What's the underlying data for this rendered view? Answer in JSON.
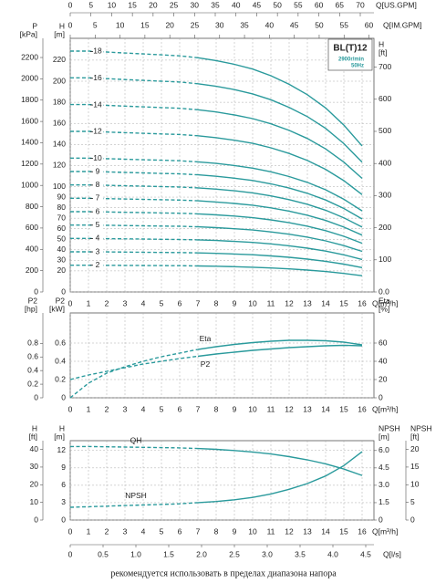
{
  "chart_data": [
    {
      "type": "line",
      "model": "BL(T)12",
      "speed": "2900r/min",
      "frequency": "50Hz",
      "x_label": "Q[m³/h]",
      "x": [
        0,
        1,
        2,
        3,
        4,
        5,
        6,
        7,
        8,
        9,
        10,
        11,
        12,
        13,
        14,
        15,
        16
      ],
      "xlim": [
        0,
        16.65
      ],
      "xticks": [
        0,
        1,
        2,
        3,
        4,
        5,
        6,
        7,
        8,
        9,
        10,
        11,
        12,
        13,
        14,
        15,
        16
      ],
      "y_label": [
        "H",
        "[m]"
      ],
      "ylim": [
        0,
        240.7
      ],
      "yticks": [
        0,
        20,
        30,
        40,
        50,
        60,
        70,
        80,
        90,
        100,
        120,
        140,
        160,
        180,
        200,
        220
      ],
      "grid": true,
      "dashed_below": 7,
      "color": "#2a9a9c",
      "extra_axes": [
        {
          "side": "left",
          "label": [
            "P",
            "[kPa]"
          ],
          "lim": [
            0,
            2380
          ],
          "ticks": [
            0,
            200,
            400,
            600,
            800,
            1000,
            1200,
            1400,
            1600,
            1800,
            2000,
            2200
          ]
        },
        {
          "side": "right",
          "label": [
            "H",
            "[ft]"
          ],
          "lim": [
            0,
            789.7
          ],
          "ticks": [
            {
              "value": 0,
              "label": "0.0"
            },
            100,
            200,
            300,
            400,
            500,
            600,
            700
          ]
        },
        {
          "side": "top",
          "label": "Q[US.GPM]",
          "lim": [
            0,
            73.3
          ],
          "ticks": [
            0,
            5,
            10,
            15,
            20,
            25,
            30,
            35,
            40,
            45,
            50,
            55,
            60,
            65,
            70
          ]
        },
        {
          "side": "top",
          "label": "Q[IM.GPM]",
          "lim": [
            0,
            61.0
          ],
          "ticks": [
            0,
            5,
            10,
            15,
            20,
            25,
            30,
            35,
            40,
            45,
            50,
            55,
            60
          ]
        }
      ],
      "series": [
        {
          "name": "18",
          "values": [
            228.6,
            228.6,
            227.7,
            226.8,
            225.9,
            225,
            224.1,
            222.3,
            219.6,
            216,
            211.5,
            205.2,
            197.1,
            187.2,
            174.6,
            158.4,
            138.6
          ]
        },
        {
          "name": "16",
          "values": [
            203.2,
            203.2,
            202.4,
            201.6,
            200.8,
            200,
            199.2,
            197.6,
            195.2,
            192,
            188,
            182.4,
            175.2,
            166.4,
            155.2,
            140.8,
            123.2
          ]
        },
        {
          "name": "14",
          "values": [
            177.8,
            177.8,
            177.1,
            176.4,
            175.7,
            175,
            174.3,
            172.9,
            170.8,
            168,
            164.5,
            159.6,
            153.3,
            145.6,
            135.8,
            123.2,
            107.8
          ]
        },
        {
          "name": "12",
          "values": [
            152.4,
            152.4,
            151.8,
            151.2,
            150.6,
            150,
            149.4,
            148.2,
            146.4,
            144,
            141,
            136.8,
            131.4,
            124.8,
            116.4,
            105.6,
            92.4
          ]
        },
        {
          "name": "10",
          "values": [
            127,
            127,
            126.5,
            126,
            125.5,
            125,
            124.5,
            123.5,
            122,
            120,
            117.5,
            114,
            109.5,
            104,
            97,
            88,
            77
          ]
        },
        {
          "name": "9",
          "values": [
            114.3,
            114.3,
            113.9,
            113.4,
            113,
            112.5,
            112.1,
            111.2,
            109.8,
            108,
            105.8,
            102.6,
            98.6,
            93.6,
            87.3,
            79.2,
            69.3
          ]
        },
        {
          "name": "8",
          "values": [
            101.6,
            101.6,
            101.2,
            100.8,
            100.4,
            100,
            99.6,
            98.8,
            97.6,
            96,
            94,
            91.2,
            87.6,
            83.2,
            77.6,
            70.4,
            61.6
          ]
        },
        {
          "name": "7",
          "values": [
            88.9,
            88.9,
            88.6,
            88.2,
            87.9,
            87.5,
            87.2,
            86.5,
            85.4,
            84,
            82.3,
            79.8,
            76.7,
            72.8,
            67.9,
            61.6,
            53.9
          ]
        },
        {
          "name": "6",
          "values": [
            76.2,
            76.2,
            75.9,
            75.6,
            75.3,
            75,
            74.7,
            74.1,
            73.2,
            72,
            70.5,
            68.4,
            65.7,
            62.4,
            58.2,
            52.8,
            46.2
          ]
        },
        {
          "name": "5",
          "values": [
            63.5,
            63.5,
            63.3,
            63,
            62.8,
            62.5,
            62.3,
            61.8,
            61,
            60,
            58.8,
            57,
            54.8,
            52,
            48.5,
            44,
            38.5
          ]
        },
        {
          "name": "4",
          "values": [
            50.8,
            50.8,
            50.6,
            50.4,
            50.2,
            50,
            49.8,
            49.4,
            48.8,
            48,
            47,
            45.6,
            43.8,
            41.6,
            38.8,
            35.2,
            30.8
          ]
        },
        {
          "name": "3",
          "values": [
            38.1,
            38.1,
            38,
            37.8,
            37.7,
            37.5,
            37.4,
            37.1,
            36.6,
            36,
            35.3,
            34.2,
            32.9,
            31.2,
            29.1,
            26.4,
            23.1
          ]
        },
        {
          "name": "2",
          "values": [
            25.4,
            25.4,
            25.3,
            25.2,
            25.1,
            25,
            24.9,
            24.7,
            24.4,
            24,
            23.5,
            22.8,
            21.9,
            20.8,
            19.4,
            17.6,
            15.4
          ]
        }
      ]
    },
    {
      "type": "line",
      "x_label": "Q[m³/h]",
      "x": [
        0,
        1,
        2,
        3,
        4,
        5,
        6,
        7,
        8,
        9,
        10,
        11,
        12,
        13,
        14,
        15,
        16
      ],
      "xlim": [
        0,
        16.65
      ],
      "xticks": [
        0,
        1,
        2,
        3,
        4,
        5,
        6,
        7,
        8,
        9,
        10,
        11,
        12,
        13,
        14,
        15,
        16
      ],
      "y_label": [
        "P2",
        "[kW]"
      ],
      "ylim": [
        0,
        0.93
      ],
      "yticks": [
        0,
        0.2,
        0.4,
        0.6
      ],
      "y2_label": [
        "Eta",
        "[%]"
      ],
      "y2lim": [
        0,
        93
      ],
      "y2ticks": [
        0,
        20,
        40,
        60
      ],
      "grid": true,
      "dashed_below": 7,
      "color": "#2a9a9c",
      "extra_axes": [
        {
          "side": "left",
          "label": [
            "P2",
            "[hp]"
          ],
          "lim": [
            0,
            1.247
          ],
          "ticks": [
            0,
            0.2,
            0.4,
            0.6,
            0.8
          ]
        }
      ],
      "series": [
        {
          "name": "Eta",
          "axis": "y2",
          "values": [
            0,
            16,
            27,
            34,
            40,
            45,
            49,
            53,
            56,
            58.5,
            60.5,
            62,
            63,
            63,
            62.5,
            61,
            58
          ]
        },
        {
          "name": "P2",
          "values": [
            0.2,
            0.25,
            0.29,
            0.33,
            0.37,
            0.4,
            0.43,
            0.455,
            0.48,
            0.5,
            0.52,
            0.535,
            0.55,
            0.56,
            0.57,
            0.575,
            0.57
          ]
        }
      ]
    },
    {
      "type": "line",
      "x_label": "Q[m³/h]",
      "x": [
        0,
        1,
        2,
        3,
        4,
        5,
        6,
        7,
        8,
        9,
        10,
        11,
        12,
        13,
        14,
        15,
        16
      ],
      "xlim": [
        0,
        16.65
      ],
      "xticks": [
        0,
        1,
        2,
        3,
        4,
        5,
        6,
        7,
        8,
        9,
        10,
        11,
        12,
        13,
        14,
        15,
        16
      ],
      "y_label": [
        "H",
        "[m]"
      ],
      "ylim": [
        0,
        13.7
      ],
      "yticks": [
        0,
        3,
        6,
        9,
        12
      ],
      "y2_label": [
        "NPSH",
        "[m]"
      ],
      "y2lim": [
        0,
        6.85
      ],
      "y2ticks": [
        0,
        1.5,
        {
          "value": 3,
          "label": "3.0"
        },
        4.5,
        {
          "value": 6,
          "label": "6.0"
        }
      ],
      "grid": true,
      "dashed_below": 7,
      "color": "#2a9a9c",
      "extra_axes": [
        {
          "side": "left",
          "label": [
            "H",
            "[ft]"
          ],
          "lim": [
            0,
            44.95
          ],
          "ticks": [
            0,
            10,
            20,
            30,
            40
          ]
        },
        {
          "side": "right",
          "label": [
            "NPSH",
            "[ft]"
          ],
          "lim": [
            0,
            22.47
          ],
          "ticks": [
            0,
            5,
            10,
            15,
            20
          ]
        },
        {
          "side": "bottom",
          "label": "Q[l/s]",
          "lim": [
            0,
            4.625
          ],
          "ticks": [
            0,
            0.5,
            {
              "value": 1,
              "label": "1.0"
            },
            1.5,
            {
              "value": 2,
              "label": "2.0"
            },
            2.5,
            {
              "value": 3,
              "label": "3.0"
            },
            3.5,
            {
              "value": 4,
              "label": "4.0"
            },
            4.5
          ]
        }
      ],
      "series": [
        {
          "name": "QH",
          "values": [
            12.7,
            12.7,
            12.65,
            12.6,
            12.55,
            12.5,
            12.45,
            12.35,
            12.2,
            12.0,
            11.75,
            11.4,
            10.95,
            10.4,
            9.7,
            8.8,
            7.7
          ]
        },
        {
          "name": "NPSH",
          "axis": "y2",
          "values": [
            1.1,
            1.15,
            1.2,
            1.25,
            1.3,
            1.35,
            1.4,
            1.5,
            1.6,
            1.75,
            1.95,
            2.25,
            2.65,
            3.15,
            3.8,
            4.7,
            5.9
          ]
        }
      ]
    }
  ],
  "caption": "рекомендуется использовать в пределах диапазона напора"
}
